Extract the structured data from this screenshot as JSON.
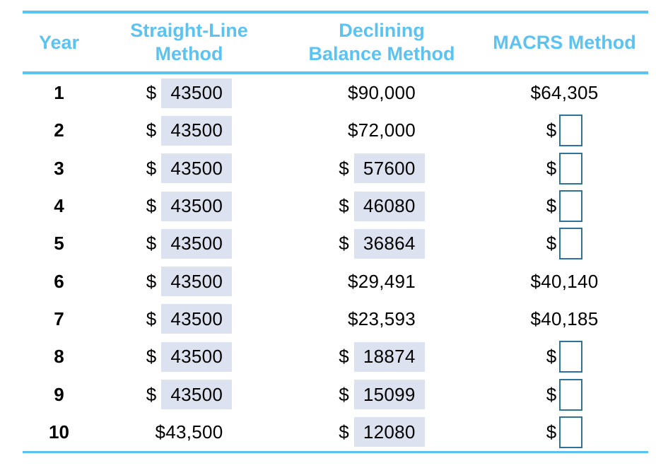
{
  "colors": {
    "accent": "#5bc3f1",
    "highlight_fill": "#dce2f0",
    "input_border": "#2e7496",
    "text": "#000000"
  },
  "header": {
    "year": {
      "line1": "Year"
    },
    "straight_line": {
      "line1": "Straight-Line",
      "line2": "Method"
    },
    "declining": {
      "line1": "Declining",
      "line2": "Balance Method"
    },
    "macrs": {
      "line1": "MACRS Method"
    }
  },
  "rows": [
    {
      "year": "1",
      "straight_line": {
        "style": "filled",
        "prefix": "$",
        "value": "43500"
      },
      "declining": {
        "style": "plain",
        "text": "$90,000"
      },
      "macrs": {
        "style": "plain",
        "text": "$64,305"
      }
    },
    {
      "year": "2",
      "straight_line": {
        "style": "filled",
        "prefix": "$",
        "value": "43500"
      },
      "declining": {
        "style": "plain",
        "text": "$72,000"
      },
      "macrs": {
        "style": "empty",
        "prefix": "$",
        "value": ""
      }
    },
    {
      "year": "3",
      "straight_line": {
        "style": "filled",
        "prefix": "$",
        "value": "43500"
      },
      "declining": {
        "style": "filled",
        "prefix": "$",
        "value": "57600"
      },
      "macrs": {
        "style": "empty",
        "prefix": "$",
        "value": ""
      }
    },
    {
      "year": "4",
      "straight_line": {
        "style": "filled",
        "prefix": "$",
        "value": "43500"
      },
      "declining": {
        "style": "filled",
        "prefix": "$",
        "value": "46080"
      },
      "macrs": {
        "style": "empty",
        "prefix": "$",
        "value": ""
      }
    },
    {
      "year": "5",
      "straight_line": {
        "style": "filled",
        "prefix": "$",
        "value": "43500"
      },
      "declining": {
        "style": "filled",
        "prefix": "$",
        "value": "36864"
      },
      "macrs": {
        "style": "empty",
        "prefix": "$",
        "value": ""
      }
    },
    {
      "year": "6",
      "straight_line": {
        "style": "filled",
        "prefix": "$",
        "value": "43500"
      },
      "declining": {
        "style": "plain",
        "text": "$29,491"
      },
      "macrs": {
        "style": "plain",
        "text": "$40,140"
      }
    },
    {
      "year": "7",
      "straight_line": {
        "style": "filled",
        "prefix": "$",
        "value": "43500"
      },
      "declining": {
        "style": "plain",
        "text": "$23,593"
      },
      "macrs": {
        "style": "plain",
        "text": "$40,185"
      }
    },
    {
      "year": "8",
      "straight_line": {
        "style": "filled",
        "prefix": "$",
        "value": "43500"
      },
      "declining": {
        "style": "filled",
        "prefix": "$",
        "value": "18874"
      },
      "macrs": {
        "style": "empty",
        "prefix": "$",
        "value": ""
      }
    },
    {
      "year": "9",
      "straight_line": {
        "style": "filled",
        "prefix": "$",
        "value": "43500"
      },
      "declining": {
        "style": "filled",
        "prefix": "$",
        "value": "15099"
      },
      "macrs": {
        "style": "empty",
        "prefix": "$",
        "value": ""
      }
    },
    {
      "year": "10",
      "straight_line": {
        "style": "plain",
        "text": "$43,500"
      },
      "declining": {
        "style": "filled",
        "prefix": "$",
        "value": "12080"
      },
      "macrs": {
        "style": "empty",
        "prefix": "$",
        "value": ""
      }
    }
  ]
}
